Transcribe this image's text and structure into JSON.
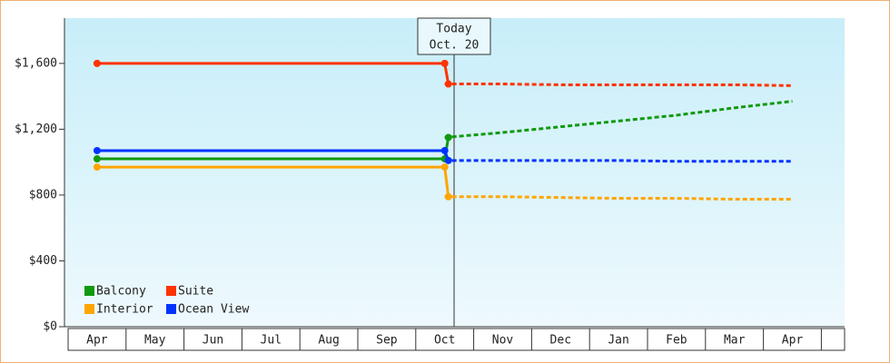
{
  "chart_data": {
    "type": "line",
    "categories": [
      "Apr",
      "May",
      "Jun",
      "Jul",
      "Aug",
      "Sep",
      "Oct",
      "Nov",
      "Dec",
      "Jan",
      "Feb",
      "Mar",
      "Apr"
    ],
    "annotation": [
      "Today",
      "Oct. 20"
    ],
    "series": [
      {
        "name": "Balcony",
        "color": "#119911",
        "values": [
          1020,
          1020,
          1020,
          1020,
          1020,
          1020,
          1020,
          null,
          null,
          null,
          null,
          null,
          null
        ],
        "forecast": [
          null,
          null,
          null,
          null,
          null,
          null,
          1150,
          1180,
          1215,
          1250,
          1285,
          1330,
          1370
        ]
      },
      {
        "name": "Suite",
        "color": "#ff3300",
        "values": [
          1600,
          1600,
          1600,
          1600,
          1600,
          1600,
          1600,
          null,
          null,
          null,
          null,
          null,
          null
        ],
        "forecast": [
          null,
          null,
          null,
          null,
          null,
          null,
          1475,
          1475,
          1470,
          1470,
          1470,
          1470,
          1465
        ]
      },
      {
        "name": "Interior",
        "color": "#ffa500",
        "values": [
          970,
          970,
          970,
          970,
          970,
          970,
          970,
          null,
          null,
          null,
          null,
          null,
          null
        ],
        "forecast": [
          null,
          null,
          null,
          null,
          null,
          null,
          790,
          790,
          785,
          780,
          780,
          775,
          775
        ]
      },
      {
        "name": "Ocean View",
        "color": "#0033ff",
        "values": [
          1070,
          1070,
          1070,
          1070,
          1070,
          1070,
          1070,
          null,
          null,
          null,
          null,
          null,
          null
        ],
        "forecast": [
          null,
          null,
          null,
          null,
          null,
          null,
          1010,
          1010,
          1010,
          1010,
          1005,
          1005,
          1005
        ]
      }
    ],
    "ylim": [
      0,
      1875
    ],
    "yticks": [
      {
        "value": 0,
        "label": "$0"
      },
      {
        "value": 400,
        "label": "$400"
      },
      {
        "value": 800,
        "label": "$800"
      },
      {
        "value": 1200,
        "label": "$1,200"
      },
      {
        "value": 1600,
        "label": "$1,600"
      }
    ]
  }
}
